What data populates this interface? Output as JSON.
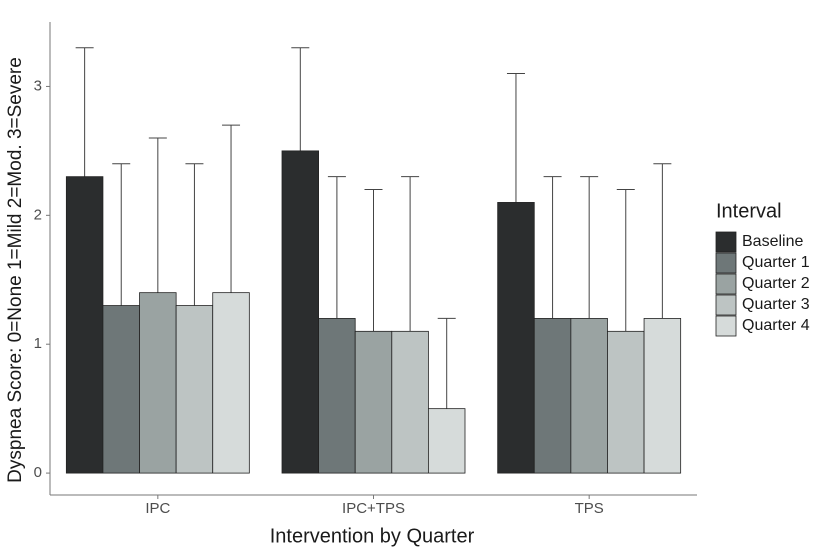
{
  "chart_data": {
    "type": "bar",
    "x_label": "Intervention by Quarter",
    "y_label": "Dyspnea Score: 0=None 1=Mild 2=Mod. 3=Severe",
    "categories": [
      "IPC",
      "IPC+TPS",
      "TPS"
    ],
    "legend_title": "Interval",
    "legend_position": "right",
    "series": [
      {
        "name": "Baseline",
        "color": "#2b2d2e",
        "values": [
          2.3,
          2.5,
          2.1
        ],
        "errors": [
          1.0,
          0.8,
          1.0
        ]
      },
      {
        "name": "Quarter 1",
        "color": "#6e7778",
        "values": [
          1.3,
          1.2,
          1.2
        ],
        "errors": [
          1.1,
          1.1,
          1.1
        ]
      },
      {
        "name": "Quarter 2",
        "color": "#9aa3a2",
        "values": [
          1.4,
          1.1,
          1.2
        ],
        "errors": [
          1.2,
          1.1,
          1.1
        ]
      },
      {
        "name": "Quarter 3",
        "color": "#bdc4c3",
        "values": [
          1.3,
          1.1,
          1.1
        ],
        "errors": [
          1.1,
          1.2,
          1.1
        ]
      },
      {
        "name": "Quarter 4",
        "color": "#d6dbda",
        "values": [
          1.4,
          0.5,
          1.2
        ],
        "errors": [
          1.3,
          0.7,
          1.2
        ]
      }
    ],
    "ylim": [
      -0.17,
      3.5
    ],
    "yticks": [
      0,
      1,
      2,
      3
    ],
    "grid": false
  }
}
